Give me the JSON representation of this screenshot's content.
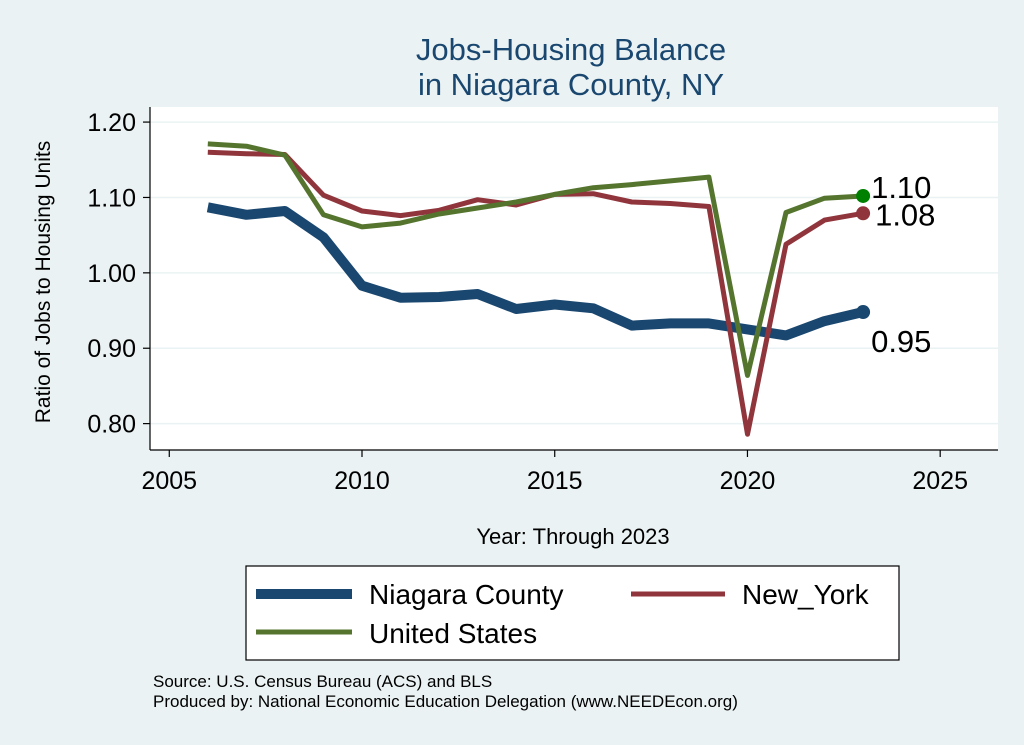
{
  "colors": {
    "background": "#eaf2f3",
    "plot_background": "#ffffff",
    "title": "#1a476f",
    "gridline": "#eaf2f3",
    "Niagara County": "#1a476f",
    "New_York": "#90353b",
    "United States": "#55752f",
    "us_end_marker": "#008000"
  },
  "chart_data": {
    "type": "line",
    "title_lines": [
      "Jobs-Housing Balance",
      "in Niagara County, NY"
    ],
    "xlabel": "Year: Through 2023",
    "ylabel": "Ratio of Jobs to Housing Units",
    "xlim": [
      2004.5,
      2026.5
    ],
    "ylim": [
      0.765,
      1.22
    ],
    "xticks": [
      "2005",
      "2010",
      "2015",
      "2020",
      "2025"
    ],
    "yticks": [
      "0.80",
      "0.90",
      "1.00",
      "1.10",
      "1.20"
    ],
    "grid": true,
    "legend_position": "bottom",
    "x": [
      2006,
      2007,
      2008,
      2009,
      2010,
      2011,
      2012,
      2013,
      2014,
      2015,
      2016,
      2017,
      2018,
      2019,
      2020,
      2021,
      2022,
      2023
    ],
    "series": [
      {
        "name": "Niagara County",
        "values": [
          1.087,
          1.077,
          1.082,
          1.047,
          0.983,
          0.967,
          0.968,
          0.972,
          0.952,
          0.958,
          0.953,
          0.93,
          0.933,
          0.933,
          0.925,
          0.917,
          0.936,
          0.948
        ],
        "end_label": "0.95"
      },
      {
        "name": "New_York",
        "values": [
          1.16,
          1.158,
          1.157,
          1.103,
          1.082,
          1.076,
          1.083,
          1.097,
          1.09,
          1.104,
          1.105,
          1.094,
          1.092,
          1.088,
          0.786,
          1.038,
          1.07,
          1.079
        ],
        "end_label": "1.08"
      },
      {
        "name": "United States",
        "values": [
          1.171,
          1.168,
          1.156,
          1.077,
          1.061,
          1.066,
          1.078,
          1.086,
          1.094,
          1.104,
          1.113,
          1.117,
          1.122,
          1.127,
          0.864,
          1.08,
          1.099,
          1.102
        ],
        "end_label": "1.10"
      }
    ],
    "legend": [
      "Niagara County",
      "New_York",
      "United States"
    ]
  },
  "source_lines": [
    "Source: U.S. Census Bureau (ACS) and BLS",
    "Produced by: National Economic Education Delegation (www.NEEDEcon.org)"
  ]
}
